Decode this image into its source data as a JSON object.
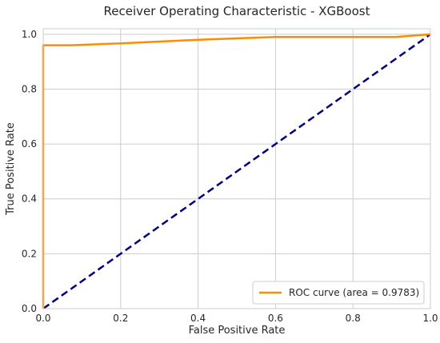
{
  "chart_data": {
    "type": "line",
    "title": "Receiver Operating Characteristic - XGBoost",
    "xlabel": "False Positive Rate",
    "ylabel": "True Positive Rate",
    "xlim": [
      0,
      1
    ],
    "ylim": [
      0,
      1.02
    ],
    "xticks": [
      0.0,
      0.2,
      0.4,
      0.6,
      0.8,
      1.0
    ],
    "yticks": [
      0.0,
      0.2,
      0.4,
      0.6,
      0.8,
      1.0
    ],
    "xtick_labels": [
      "0.0",
      "0.2",
      "0.4",
      "0.6",
      "0.8",
      "1.0"
    ],
    "ytick_labels": [
      "0.0",
      "0.2",
      "0.4",
      "0.6",
      "0.8",
      "1.0"
    ],
    "grid": true,
    "legend_position": "bottom-right",
    "series": [
      {
        "name": "ROC curve (area = 0.9783)",
        "color": "#ff8c00",
        "style": "solid",
        "x": [
          0.0,
          0.0,
          0.002,
          0.07,
          0.2,
          0.4,
          0.6,
          0.9,
          0.91,
          1.0
        ],
        "y": [
          0.0,
          0.96,
          0.96,
          0.96,
          0.967,
          0.98,
          0.99,
          0.99,
          0.99,
          1.0
        ]
      },
      {
        "color": "#000080",
        "style": "dashed",
        "x": [
          0.0,
          1.0
        ],
        "y": [
          0.0,
          1.0
        ]
      }
    ]
  }
}
